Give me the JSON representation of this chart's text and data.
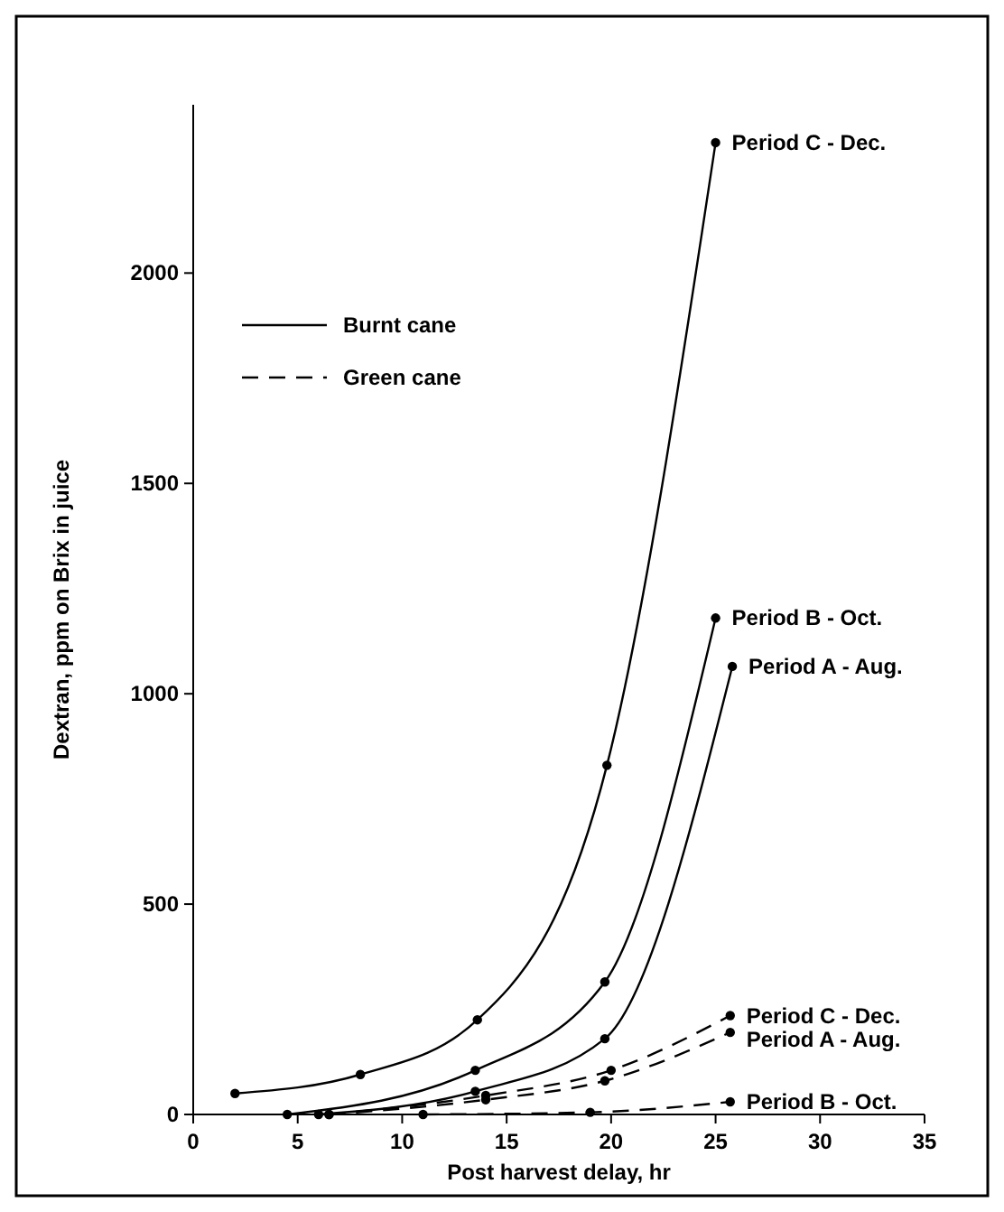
{
  "chart_data": {
    "type": "line",
    "xlabel": "Post harvest delay, hr",
    "ylabel": "Dextran, ppm on Brix in juice",
    "xlim": [
      0,
      35
    ],
    "xticks": [
      0,
      5,
      10,
      15,
      20,
      25,
      30,
      35
    ],
    "ylim": [
      0,
      2400
    ],
    "yticks": [
      0,
      500,
      1000,
      1500,
      2000
    ],
    "marker": "circle",
    "grid": false,
    "annotations": [
      "Burnt cane",
      "Green cane"
    ],
    "series": [
      {
        "name": "Period C - Dec.",
        "color": "#000000",
        "line_style": "solid",
        "x": [
          2,
          8,
          13.6,
          19.8,
          25
        ],
        "values": [
          50,
          95,
          225,
          830,
          2310
        ]
      },
      {
        "name": "Period B - Oct.",
        "color": "#000000",
        "line_style": "solid",
        "x": [
          4.5,
          13.5,
          19.7,
          25
        ],
        "values": [
          0,
          105,
          315,
          1180
        ]
      },
      {
        "name": "Period A - Aug.",
        "color": "#000000",
        "line_style": "solid",
        "x": [
          6,
          13.5,
          19.7,
          25.8
        ],
        "values": [
          0,
          55,
          180,
          1065
        ]
      },
      {
        "name": "Period C - Dec.",
        "color": "#000000",
        "line_style": "dashed",
        "x": [
          6.5,
          14,
          20,
          25.7
        ],
        "values": [
          0,
          45,
          105,
          235
        ]
      },
      {
        "name": "Period A - Aug.",
        "color": "#000000",
        "line_style": "dashed",
        "x": [
          6.5,
          14,
          19.7,
          25.7
        ],
        "values": [
          0,
          35,
          80,
          195
        ]
      },
      {
        "name": "Period B - Oct.",
        "color": "#000000",
        "line_style": "dashed",
        "x": [
          11,
          19,
          25.7
        ],
        "values": [
          0,
          5,
          30
        ]
      }
    ]
  }
}
